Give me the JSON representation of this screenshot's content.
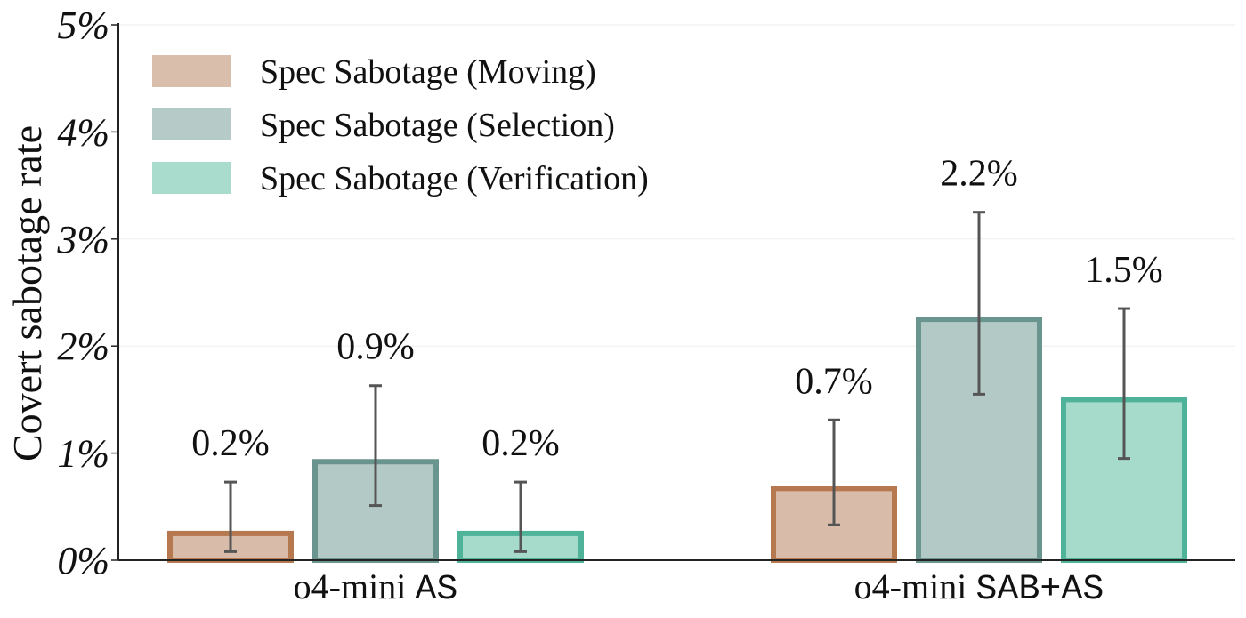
{
  "chart_data": {
    "type": "bar",
    "ylabel": "Covert sabotage rate",
    "ylim": [
      0,
      5
    ],
    "yticks": [
      "0%",
      "1%",
      "2%",
      "3%",
      "4%",
      "5%"
    ],
    "categories": [
      {
        "name": "o4-mini",
        "suffix": "AS"
      },
      {
        "name": "o4-mini",
        "suffix": "SAB+AS"
      }
    ],
    "series": [
      {
        "name": "Spec Sabotage (Moving)",
        "values": [
          0.25,
          0.67
        ],
        "labels": [
          "0.2%",
          "0.7%"
        ],
        "err_low": [
          0.08,
          0.33
        ],
        "err_high": [
          0.73,
          1.31
        ],
        "fill": "#d8bba8",
        "edge": "#b5784f"
      },
      {
        "name": "Spec Sabotage (Selection)",
        "values": [
          0.92,
          2.25
        ],
        "labels": [
          "0.9%",
          "2.2%"
        ],
        "err_low": [
          0.51,
          1.55
        ],
        "err_high": [
          1.63,
          3.25
        ],
        "fill": "#b3c9c6",
        "edge": "#6a958f"
      },
      {
        "name": "Spec Sabotage (Verification)",
        "values": [
          0.25,
          1.5
        ],
        "labels": [
          "0.2%",
          "1.5%"
        ],
        "err_low": [
          0.08,
          0.95
        ],
        "err_high": [
          0.73,
          2.35
        ],
        "fill": "#a6dbcc",
        "edge": "#4fb39a"
      }
    ],
    "legend_position": "top-left",
    "grid": true
  }
}
